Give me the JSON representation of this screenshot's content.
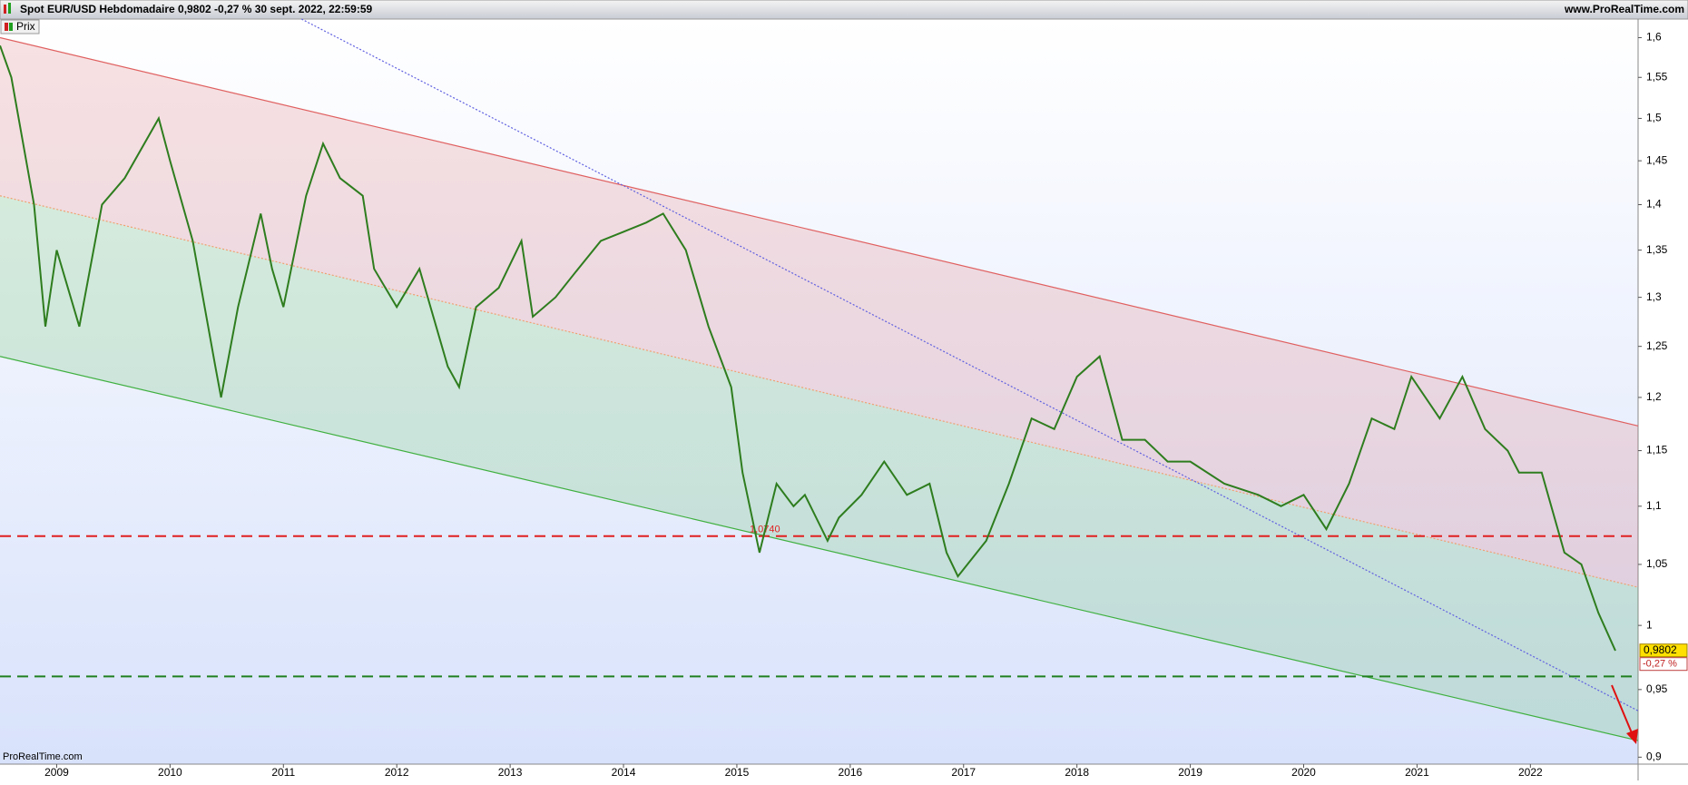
{
  "header": {
    "title": "Spot EUR/USD Hebdomadaire 0,9802 -0,27 % 30 sept. 2022, 22:59:59",
    "site": "www.ProRealTime.com",
    "footer": "ProRealTime.com"
  },
  "chart_data": {
    "type": "line",
    "log": true,
    "x": [
      2008.5,
      2008.6,
      2008.8,
      2008.9,
      2009.0,
      2009.2,
      2009.4,
      2009.6,
      2009.9,
      2010.0,
      2010.2,
      2010.4,
      2010.45,
      2010.6,
      2010.8,
      2010.9,
      2011.0,
      2011.2,
      2011.35,
      2011.5,
      2011.7,
      2011.8,
      2012.0,
      2012.2,
      2012.45,
      2012.55,
      2012.7,
      2012.9,
      2013.1,
      2013.2,
      2013.4,
      2013.6,
      2013.8,
      2014.0,
      2014.2,
      2014.35,
      2014.55,
      2014.75,
      2014.95,
      2015.05,
      2015.2,
      2015.35,
      2015.5,
      2015.6,
      2015.8,
      2015.9,
      2016.1,
      2016.3,
      2016.5,
      2016.7,
      2016.85,
      2016.95,
      2017.2,
      2017.4,
      2017.6,
      2017.8,
      2018.0,
      2018.2,
      2018.4,
      2018.6,
      2018.8,
      2019.0,
      2019.3,
      2019.6,
      2019.8,
      2020.0,
      2020.2,
      2020.4,
      2020.6,
      2020.8,
      2020.95,
      2021.2,
      2021.4,
      2021.6,
      2021.8,
      2021.9,
      2022.1,
      2022.3,
      2022.45,
      2022.6,
      2022.75
    ],
    "series": [
      {
        "name": "Prix",
        "color": "#2e7d1e",
        "values": [
          1.59,
          1.55,
          1.4,
          1.27,
          1.35,
          1.27,
          1.4,
          1.43,
          1.5,
          1.45,
          1.36,
          1.23,
          1.2,
          1.29,
          1.39,
          1.33,
          1.29,
          1.41,
          1.47,
          1.43,
          1.41,
          1.33,
          1.29,
          1.33,
          1.23,
          1.21,
          1.29,
          1.31,
          1.36,
          1.28,
          1.3,
          1.33,
          1.36,
          1.37,
          1.38,
          1.39,
          1.35,
          1.27,
          1.21,
          1.13,
          1.06,
          1.12,
          1.1,
          1.11,
          1.07,
          1.09,
          1.11,
          1.14,
          1.11,
          1.12,
          1.06,
          1.04,
          1.07,
          1.12,
          1.18,
          1.17,
          1.22,
          1.24,
          1.16,
          1.16,
          1.14,
          1.14,
          1.12,
          1.11,
          1.1,
          1.11,
          1.08,
          1.12,
          1.18,
          1.17,
          1.22,
          1.18,
          1.22,
          1.17,
          1.15,
          1.13,
          1.13,
          1.06,
          1.05,
          1.01,
          0.98
        ]
      }
    ],
    "trendlines": [
      {
        "color": "#e06060",
        "style": "solid",
        "x": [
          2008.5,
          2022.95
        ],
        "values": [
          1.6,
          1.173
        ]
      },
      {
        "color": "#f0a070",
        "style": "dotted",
        "x": [
          2008.5,
          2022.95
        ],
        "values": [
          1.41,
          1.031
        ]
      },
      {
        "color": "#40b040",
        "style": "solid",
        "x": [
          2008.5,
          2022.95
        ],
        "values": [
          1.24,
          0.912
        ]
      },
      {
        "color": "#6060e0",
        "style": "dotted",
        "x": [
          2011.16,
          2022.95
        ],
        "values": [
          1.624,
          0.934
        ]
      }
    ],
    "hlines": [
      {
        "value": 1.074,
        "label": "1,0740",
        "color": "#e02020"
      },
      {
        "value": 0.96,
        "color": "#208020"
      }
    ],
    "last_price": {
      "value": 0.9802,
      "label": "0,9802"
    },
    "change": {
      "value": -0.27,
      "label": "-0,27 %"
    },
    "xlim": [
      2008.5,
      2022.95
    ],
    "ylim": [
      0.895,
      1.624
    ],
    "xticks": [
      2009,
      2010,
      2011,
      2012,
      2013,
      2014,
      2015,
      2016,
      2017,
      2018,
      2019,
      2020,
      2021,
      2022
    ],
    "yticks": [
      {
        "value": 1.6,
        "label": "1,6"
      },
      {
        "value": 1.55,
        "label": "1,55"
      },
      {
        "value": 1.5,
        "label": "1,5"
      },
      {
        "value": 1.45,
        "label": "1,45"
      },
      {
        "value": 1.4,
        "label": "1,4"
      },
      {
        "value": 1.35,
        "label": "1,35"
      },
      {
        "value": 1.3,
        "label": "1,3"
      },
      {
        "value": 1.25,
        "label": "1,25"
      },
      {
        "value": 1.2,
        "label": "1,2"
      },
      {
        "value": 1.15,
        "label": "1,15"
      },
      {
        "value": 1.1,
        "label": "1,1"
      },
      {
        "value": 1.05,
        "label": "1,05"
      },
      1,
      {
        "value": 0.95,
        "label": "0,95"
      },
      {
        "value": 0.9,
        "label": "0,9"
      }
    ]
  }
}
